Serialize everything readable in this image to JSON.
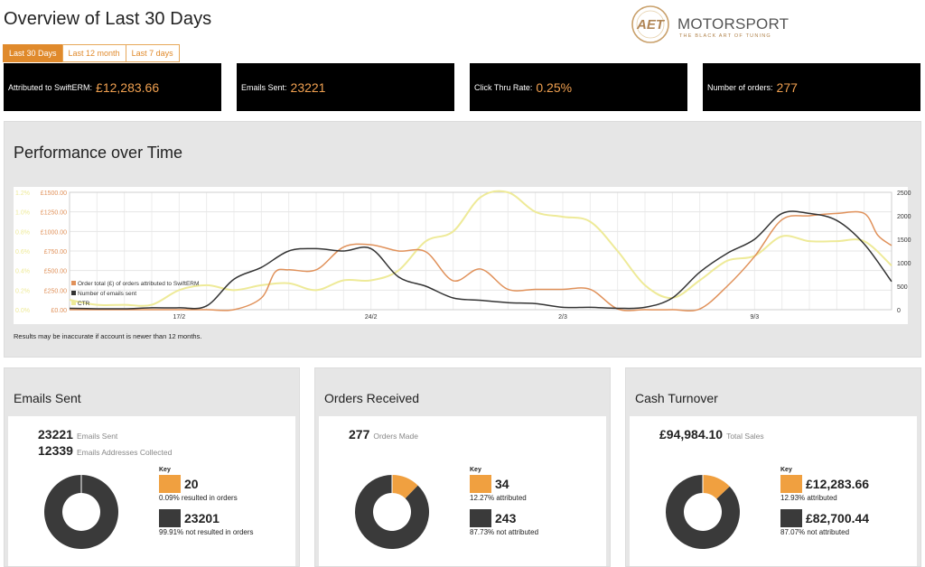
{
  "page_title": "Overview of Last 30 Days",
  "logo": {
    "mark": "AET",
    "word": "MOTORSPORT",
    "tagline": "THE BLACK ART OF TUNING"
  },
  "range_tabs": [
    {
      "label": "Last 30 Days",
      "active": true
    },
    {
      "label": "Last 12 month",
      "active": false
    },
    {
      "label": "Last 7 days",
      "active": false
    }
  ],
  "kpis": [
    {
      "label": "Attributed to SwiftERM:",
      "value": "£12,283.66"
    },
    {
      "label": "Emails Sent:",
      "value": "23221"
    },
    {
      "label": "Click Thru Rate:",
      "value": "0.25%"
    },
    {
      "label": "Number of orders:",
      "value": "277"
    }
  ],
  "performance": {
    "title": "Performance over Time",
    "note": "Results may be inaccurate if account is newer than 12 months."
  },
  "chart_data": {
    "type": "line",
    "title": "Performance over Time",
    "x_ticks": [
      "17/2",
      "24/2",
      "2/3",
      "9/3"
    ],
    "y_left_ticks": [
      "£0.00",
      "£250.00",
      "£500.00",
      "£750.00",
      "£1000.00",
      "£1250.00",
      "£1500.00"
    ],
    "y_right_ticks": [
      "0",
      "500",
      "1000",
      "1500",
      "2000",
      "2500"
    ],
    "y_ctr_ticks": [
      "0.0%",
      "0.2%",
      "0.4%",
      "0.6%",
      "0.8%",
      "1.0%",
      "1.2%"
    ],
    "y_left_range": [
      0,
      1500
    ],
    "y_right_range": [
      0,
      2500
    ],
    "y_ctr_range": [
      0,
      1.2
    ],
    "x_range": [
      13,
      43
    ],
    "x_tick_positions": [
      17,
      24,
      31,
      38
    ],
    "legend_placement": "bottom-left",
    "grid": true,
    "series": [
      {
        "name": "Order total (£) of orders attributed to SwiftERM",
        "color": "#e0915a",
        "axis": "left",
        "points": [
          [
            13,
            0
          ],
          [
            14,
            0
          ],
          [
            15,
            0
          ],
          [
            16,
            0
          ],
          [
            17,
            0
          ],
          [
            18,
            0
          ],
          [
            19,
            0
          ],
          [
            20,
            150
          ],
          [
            20.5,
            480
          ],
          [
            21,
            510
          ],
          [
            22,
            510
          ],
          [
            23,
            800
          ],
          [
            24,
            830
          ],
          [
            25,
            750
          ],
          [
            26,
            740
          ],
          [
            27,
            370
          ],
          [
            28,
            520
          ],
          [
            29,
            260
          ],
          [
            30,
            260
          ],
          [
            31,
            260
          ],
          [
            32,
            260
          ],
          [
            33,
            10
          ],
          [
            34,
            0
          ],
          [
            35,
            0
          ],
          [
            36,
            10
          ],
          [
            37,
            300
          ],
          [
            38,
            680
          ],
          [
            39,
            1150
          ],
          [
            40,
            1200
          ],
          [
            41,
            1230
          ],
          [
            42,
            1230
          ],
          [
            42.5,
            950
          ],
          [
            43,
            820
          ]
        ]
      },
      {
        "name": "Number of emails sent",
        "color": "#333333",
        "axis": "right",
        "points": [
          [
            13,
            30
          ],
          [
            14,
            20
          ],
          [
            15,
            20
          ],
          [
            16,
            40
          ],
          [
            17,
            40
          ],
          [
            18,
            80
          ],
          [
            19,
            650
          ],
          [
            20,
            900
          ],
          [
            21,
            1250
          ],
          [
            22,
            1300
          ],
          [
            23,
            1250
          ],
          [
            24,
            1300
          ],
          [
            25,
            700
          ],
          [
            26,
            500
          ],
          [
            27,
            250
          ],
          [
            28,
            200
          ],
          [
            29,
            150
          ],
          [
            30,
            130
          ],
          [
            31,
            50
          ],
          [
            32,
            50
          ],
          [
            33,
            30
          ],
          [
            34,
            50
          ],
          [
            35,
            250
          ],
          [
            36,
            800
          ],
          [
            37,
            1200
          ],
          [
            38,
            1500
          ],
          [
            39,
            2050
          ],
          [
            40,
            2050
          ],
          [
            41,
            1900
          ],
          [
            42,
            1400
          ],
          [
            43,
            600
          ]
        ]
      },
      {
        "name": "CTR",
        "color": "#eeea98",
        "axis": "ctr",
        "points": [
          [
            13,
            0.1
          ],
          [
            14,
            0.05
          ],
          [
            15,
            0.05
          ],
          [
            16,
            0.05
          ],
          [
            17,
            0.2
          ],
          [
            18,
            0.25
          ],
          [
            19,
            0.2
          ],
          [
            20,
            0.25
          ],
          [
            21,
            0.27
          ],
          [
            22,
            0.2
          ],
          [
            23,
            0.3
          ],
          [
            24,
            0.3
          ],
          [
            25,
            0.4
          ],
          [
            26,
            0.7
          ],
          [
            27,
            0.8
          ],
          [
            28,
            1.15
          ],
          [
            29,
            1.2
          ],
          [
            30,
            1.0
          ],
          [
            31,
            0.95
          ],
          [
            32,
            0.9
          ],
          [
            33,
            0.6
          ],
          [
            34,
            0.25
          ],
          [
            35,
            0.12
          ],
          [
            36,
            0.3
          ],
          [
            37,
            0.5
          ],
          [
            38,
            0.55
          ],
          [
            39,
            0.75
          ],
          [
            40,
            0.7
          ],
          [
            41,
            0.7
          ],
          [
            42,
            0.7
          ],
          [
            43,
            0.45
          ]
        ]
      }
    ]
  },
  "cards": {
    "emails": {
      "title": "Emails Sent",
      "stat1_value": "23221",
      "stat1_label": "Emails Sent",
      "stat2_value": "12339",
      "stat2_label": "Emails Addresses Collected",
      "key_title": "Key",
      "key1_value": "20",
      "key1_desc": "0.09% resulted in orders",
      "key2_value": "23201",
      "key2_desc": "99.91% not resulted in orders",
      "orange_fraction": 0.0009
    },
    "orders": {
      "title": "Orders Received",
      "stat1_value": "277",
      "stat1_label": "Orders Made",
      "key_title": "Key",
      "key1_value": "34",
      "key1_desc": "12.27% attributed",
      "key2_value": "243",
      "key2_desc": "87.73% not attributed",
      "orange_fraction": 0.1227
    },
    "cash": {
      "title": "Cash Turnover",
      "stat1_value": "£94,984.10",
      "stat1_label": "Total Sales",
      "key_title": "Key",
      "key1_value": "£12,283.66",
      "key1_desc": "12.93% attributed",
      "key2_value": "£82,700.44",
      "key2_desc": "87.07% not attributed",
      "orange_fraction": 0.1293
    }
  },
  "colors": {
    "accent": "#e08a2c",
    "dark": "#3a3a3a",
    "orange": "#f0a040"
  }
}
